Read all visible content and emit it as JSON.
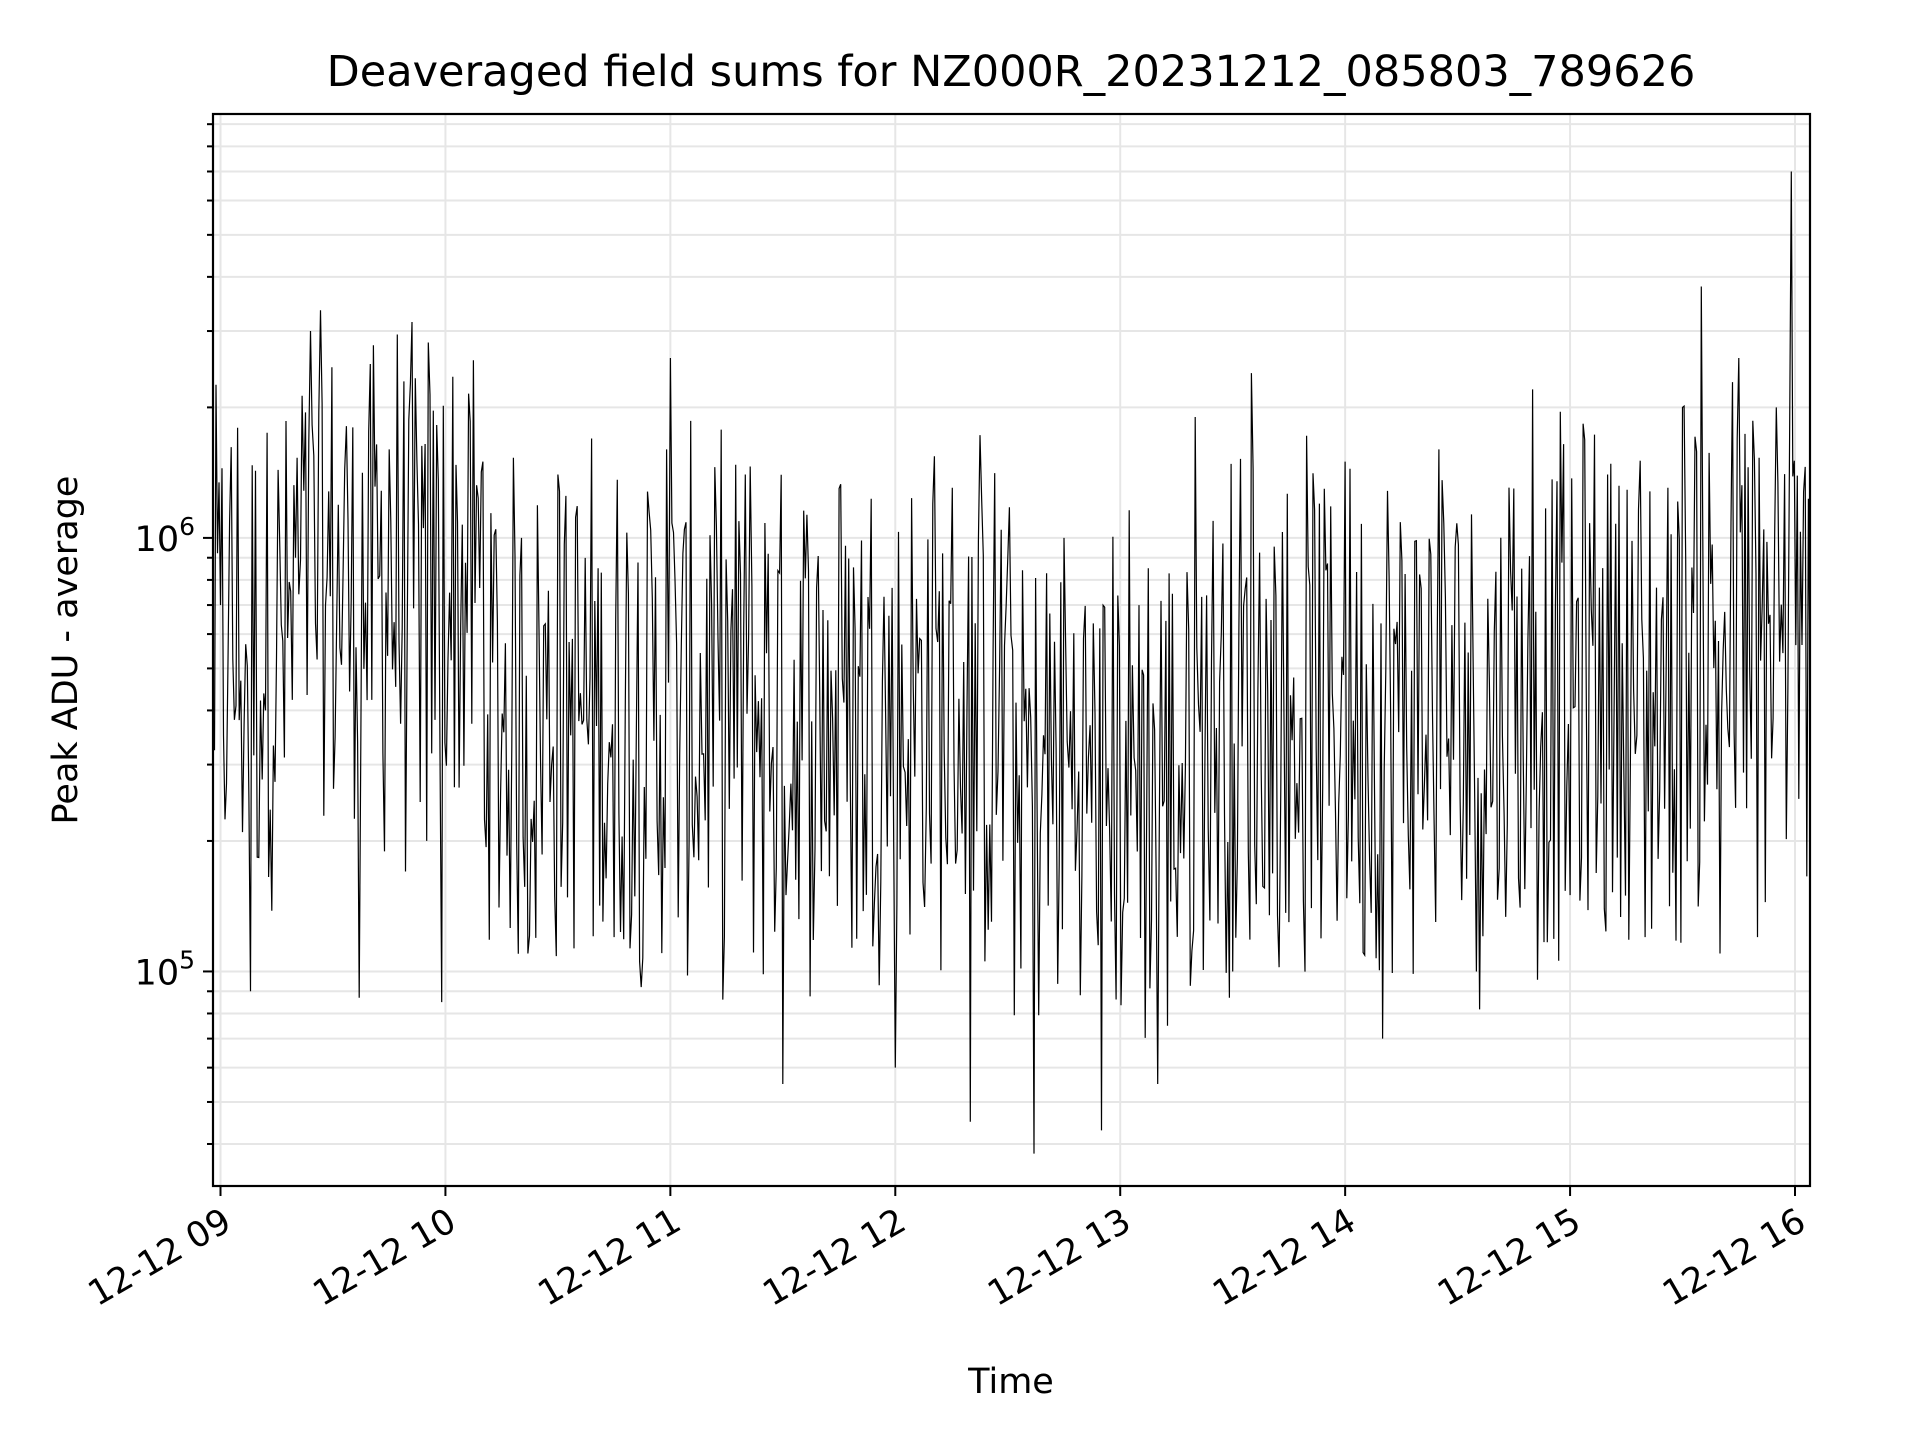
{
  "chart_data": {
    "type": "line",
    "title": "Deaveraged field sums for NZ000R_20231212_085803_789626",
    "xlabel": "Time",
    "ylabel": "Peak ADU - average",
    "y_scale": "log",
    "ylim": [
      32000,
      9500000
    ],
    "xlim": [
      "2023-12-12T08:58:00",
      "2023-12-12T16:04:00"
    ],
    "x_ticks": [
      {
        "at": "2023-12-12T09:00:00",
        "label": "12-12 09"
      },
      {
        "at": "2023-12-12T10:00:00",
        "label": "12-12 10"
      },
      {
        "at": "2023-12-12T11:00:00",
        "label": "12-12 11"
      },
      {
        "at": "2023-12-12T12:00:00",
        "label": "12-12 12"
      },
      {
        "at": "2023-12-12T13:00:00",
        "label": "12-12 13"
      },
      {
        "at": "2023-12-12T14:00:00",
        "label": "12-12 14"
      },
      {
        "at": "2023-12-12T15:00:00",
        "label": "12-12 15"
      },
      {
        "at": "2023-12-12T16:00:00",
        "label": "12-12 16"
      }
    ],
    "y_major_ticks": [
      {
        "value": 100000,
        "base": "10",
        "exp": "5"
      },
      {
        "value": 1000000,
        "base": "10",
        "exp": "6"
      }
    ],
    "grid": true,
    "line_color": "#000000",
    "grid_color": "#e6e6e6",
    "series": [
      {
        "points": [
          [
            "2023-12-12T08:58:00",
            400000
          ],
          [
            "2023-12-12T09:00:00",
            700000
          ],
          [
            "2023-12-12T09:02:00",
            520000
          ],
          [
            "2023-12-12T09:05:00",
            380000
          ],
          [
            "2023-12-12T09:08:00",
            90000
          ],
          [
            "2023-12-12T09:12:00",
            400000
          ],
          [
            "2023-12-12T09:20:00",
            900000
          ],
          [
            "2023-12-12T09:24:00",
            3000000
          ],
          [
            "2023-12-12T09:28:00",
            700000
          ],
          [
            "2023-12-12T09:34:00",
            1100000
          ],
          [
            "2023-12-12T09:37:00",
            87000
          ],
          [
            "2023-12-12T09:45:00",
            1600000
          ],
          [
            "2023-12-12T09:55:00",
            200000
          ],
          [
            "2023-12-12T09:59:00",
            85000
          ],
          [
            "2023-12-12T10:10:00",
            1500000
          ],
          [
            "2023-12-12T10:22:00",
            110000
          ],
          [
            "2023-12-12T10:30:00",
            1400000
          ],
          [
            "2023-12-12T10:45:00",
            120000
          ],
          [
            "2023-12-12T10:59:00",
            1600000
          ],
          [
            "2023-12-12T11:00:00",
            2600000
          ],
          [
            "2023-12-12T11:05:00",
            200000
          ],
          [
            "2023-12-12T11:20:00",
            1400000
          ],
          [
            "2023-12-12T11:30:00",
            55000
          ],
          [
            "2023-12-12T11:45:00",
            1300000
          ],
          [
            "2023-12-12T12:00:00",
            60000
          ],
          [
            "2023-12-12T12:10:00",
            1200000
          ],
          [
            "2023-12-12T12:20:00",
            45000
          ],
          [
            "2023-12-12T12:30:00",
            900000
          ],
          [
            "2023-12-12T12:37:00",
            38000
          ],
          [
            "2023-12-12T12:45:00",
            1000000
          ],
          [
            "2023-12-12T12:55:00",
            43000
          ],
          [
            "2023-12-12T13:05:00",
            700000
          ],
          [
            "2023-12-12T13:10:00",
            55000
          ],
          [
            "2023-12-12T13:20:00",
            1900000
          ],
          [
            "2023-12-12T13:30:00",
            100000
          ],
          [
            "2023-12-12T13:35:00",
            2400000
          ],
          [
            "2023-12-12T13:45:00",
            130000
          ],
          [
            "2023-12-12T14:00:00",
            1500000
          ],
          [
            "2023-12-12T14:10:00",
            70000
          ],
          [
            "2023-12-12T14:25:00",
            1600000
          ],
          [
            "2023-12-12T14:35:00",
            100000
          ],
          [
            "2023-12-12T14:45:00",
            1300000
          ],
          [
            "2023-12-12T14:50:00",
            2200000
          ],
          [
            "2023-12-12T15:00:00",
            150000
          ],
          [
            "2023-12-12T15:10:00",
            1400000
          ],
          [
            "2023-12-12T15:20:00",
            120000
          ],
          [
            "2023-12-12T15:30:00",
            2000000
          ],
          [
            "2023-12-12T15:35:00",
            3800000
          ],
          [
            "2023-12-12T15:40:00",
            110000
          ],
          [
            "2023-12-12T15:45:00",
            2600000
          ],
          [
            "2023-12-12T15:50:00",
            120000
          ],
          [
            "2023-12-12T15:55:00",
            2000000
          ],
          [
            "2023-12-12T15:59:00",
            7000000
          ],
          [
            "2023-12-12T16:01:00",
            250000
          ],
          [
            "2023-12-12T16:04:00",
            500000
          ]
        ]
      }
    ]
  }
}
